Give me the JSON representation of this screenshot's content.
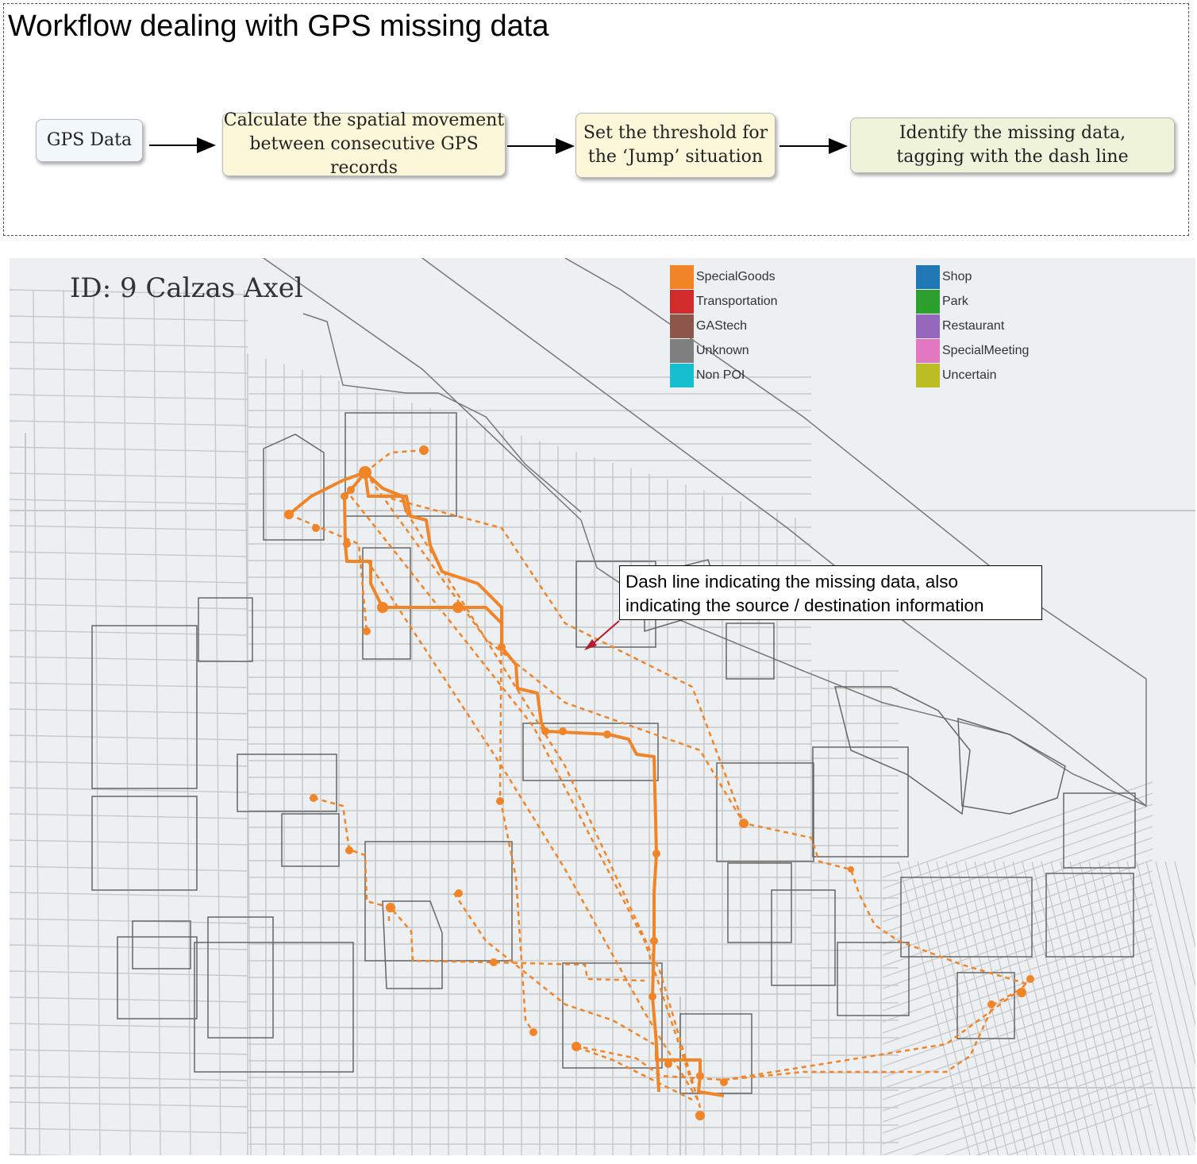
{
  "workflow": {
    "title": "Workflow dealing with GPS missing data",
    "steps": [
      {
        "line1": "GPS Data",
        "line2": "",
        "color": "#f2f8fb"
      },
      {
        "line1": "Calculate the spatial movement",
        "line2": "between consecutive GPS records",
        "color": "#fdf7d9"
      },
      {
        "line1": "Set the threshold for",
        "line2": "the ‘Jump’ situation",
        "color": "#fdf7d9"
      },
      {
        "line1": "Identify the missing data,",
        "line2": "tagging with the dash line",
        "color": "#eef3da"
      }
    ]
  },
  "map": {
    "id_label": "ID: 9 Calzas Axel",
    "background": "#edf0f3",
    "road_color": "#c8c8c8",
    "boundary_color": "#666666",
    "trajectory_color": "#f28428",
    "legend": [
      {
        "label": "SpecialGoods",
        "color": "#f28428"
      },
      {
        "label": "Transportation",
        "color": "#d12b2b"
      },
      {
        "label": "GAStech",
        "color": "#8c564b"
      },
      {
        "label": "Unknown",
        "color": "#7f7f7f"
      },
      {
        "label": "Non POI",
        "color": "#17becf"
      },
      {
        "label": "Shop",
        "color": "#1f77b4"
      },
      {
        "label": "Park",
        "color": "#2ca02c"
      },
      {
        "label": "Restaurant",
        "color": "#9467bd"
      },
      {
        "label": "SpecialMeeting",
        "color": "#e377c2"
      },
      {
        "label": "Uncertain",
        "color": "#bcbd22"
      }
    ],
    "annotation": {
      "line1": "Dash line indicating the missing data, also",
      "line2": "indicating the source / destination information",
      "arrow_color": "#b51c2c"
    }
  }
}
